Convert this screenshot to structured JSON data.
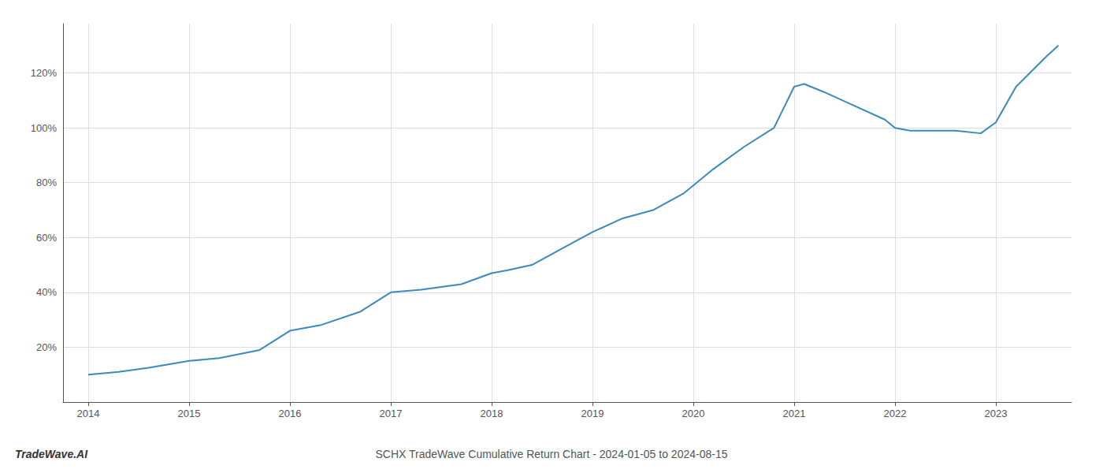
{
  "chart_data": {
    "type": "line",
    "title": "SCHX TradeWave Cumulative Return Chart - 2024-01-05 to 2024-08-15",
    "annotations": [
      "TradeWave.AI"
    ],
    "x": [
      2014.0,
      2014.3,
      2014.6,
      2015.0,
      2015.3,
      2015.7,
      2016.0,
      2016.3,
      2016.7,
      2017.0,
      2017.3,
      2017.7,
      2018.0,
      2018.15,
      2018.4,
      2018.7,
      2019.0,
      2019.3,
      2019.6,
      2019.9,
      2020.0,
      2020.2,
      2020.5,
      2020.8,
      2021.0,
      2021.1,
      2021.3,
      2021.6,
      2021.9,
      2022.0,
      2022.15,
      2022.3,
      2022.6,
      2022.85,
      2023.0,
      2023.2,
      2023.5,
      2023.62
    ],
    "values": [
      10,
      11,
      12.5,
      15,
      16,
      19,
      26,
      28,
      33,
      40,
      41,
      43,
      47,
      48,
      50,
      56,
      62,
      67,
      70,
      76,
      79,
      85,
      93,
      100,
      115,
      116,
      113,
      108,
      103,
      100,
      99,
      99,
      99,
      98,
      102,
      115,
      126,
      130
    ],
    "color": "#3a8abf",
    "xlim": [
      2013.75,
      2023.75
    ],
    "xticks": [
      2014,
      2015,
      2016,
      2017,
      2018,
      2019,
      2020,
      2021,
      2022,
      2023
    ],
    "ylim": [
      0,
      138
    ],
    "yticks": [
      {
        "value": 20,
        "label": "20%"
      },
      {
        "value": 40,
        "label": "40%"
      },
      {
        "value": 60,
        "label": "60%"
      },
      {
        "value": 80,
        "label": "80%"
      },
      {
        "value": 100,
        "label": "100%"
      },
      {
        "value": 120,
        "label": "120%"
      }
    ],
    "grid": true
  }
}
